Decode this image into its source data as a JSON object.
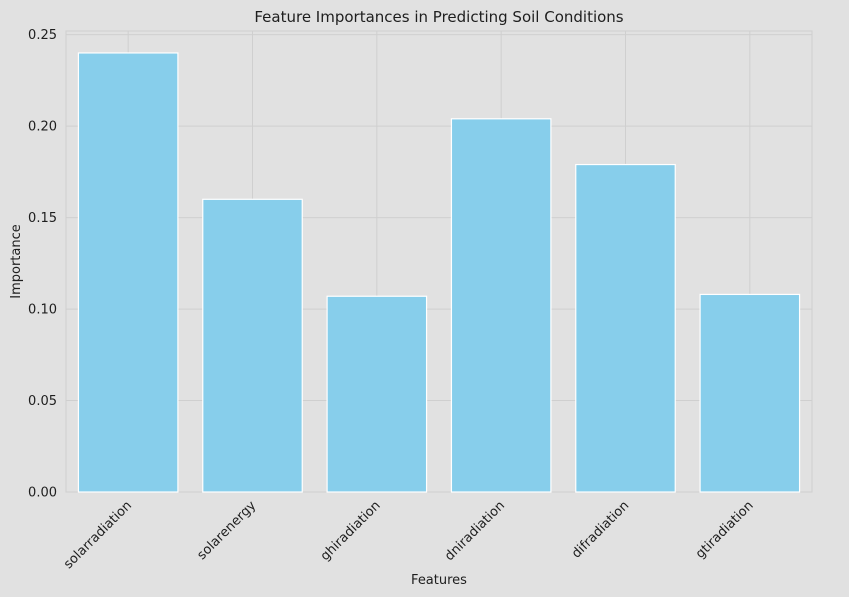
{
  "chart_data": {
    "type": "bar",
    "title": "Feature Importances in Predicting Soil Conditions",
    "xlabel": "Features",
    "ylabel": "Importance",
    "categories": [
      "solarradiation",
      "solarenergy",
      "ghiradiation",
      "dniradiation",
      "difradiation",
      "gtiradiation"
    ],
    "values": [
      0.24,
      0.16,
      0.107,
      0.204,
      0.179,
      0.108
    ],
    "ylim": [
      0,
      0.252
    ],
    "yticks": [
      "0.00",
      "0.05",
      "0.10",
      "0.15",
      "0.20",
      "0.25"
    ],
    "bar_color": "#87ceeb",
    "background": "#e1e1e1",
    "grid": true,
    "x_tick_rotation": "45 degrees"
  }
}
